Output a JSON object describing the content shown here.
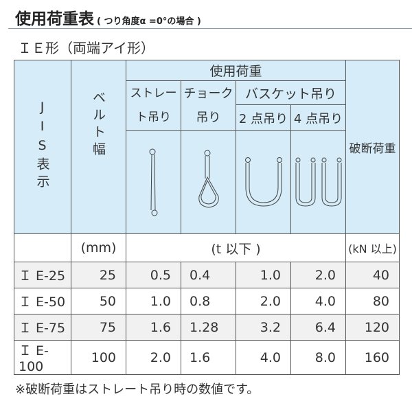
{
  "title": "使用荷重表",
  "title_note": "( つり角度α =0°の場合 )",
  "subtitle": "ＩＥ形（両端アイ形）",
  "header": {
    "jis": "JIS表示",
    "belt_width": "ベルト幅",
    "working_load": "使用荷重",
    "straight": "ストレート吊り",
    "choke": "チョーク吊り",
    "basket": "バスケット吊り",
    "two_point": "2 点吊り",
    "four_point": "4 点吊り",
    "breaking_load": "破断荷重"
  },
  "icons": [
    "straight-sling-icon",
    "choke-sling-icon",
    "basket-2point-icon",
    "basket-4point-icon"
  ],
  "units": {
    "belt_width": "(mm)",
    "working_load": "(t 以下 )",
    "breaking_load": "(kN 以上)"
  },
  "rows": [
    {
      "jis": "Ｉ E-25",
      "width": "25",
      "straight": "0.5",
      "choke": "0.4",
      "two": "1.0",
      "four": "2.0",
      "break": "40"
    },
    {
      "jis": "Ｉ E-50",
      "width": "50",
      "straight": "1.0",
      "choke": "0.8",
      "two": "2.0",
      "four": "4.0",
      "break": "80"
    },
    {
      "jis": "Ｉ E-75",
      "width": "75",
      "straight": "1.6",
      "choke": "1.28",
      "two": "3.2",
      "four": "6.4",
      "break": "120"
    },
    {
      "jis": "Ｉ E-100",
      "width": "100",
      "straight": "2.0",
      "choke": "1.6",
      "two": "4.0",
      "four": "8.0",
      "break": "160"
    }
  ],
  "note": "※破断荷重はストレート吊り時の数値です。",
  "colors": {
    "header_bg": "#d6ecf8",
    "row_alt": "#f1f1f1",
    "border": "#555555"
  }
}
